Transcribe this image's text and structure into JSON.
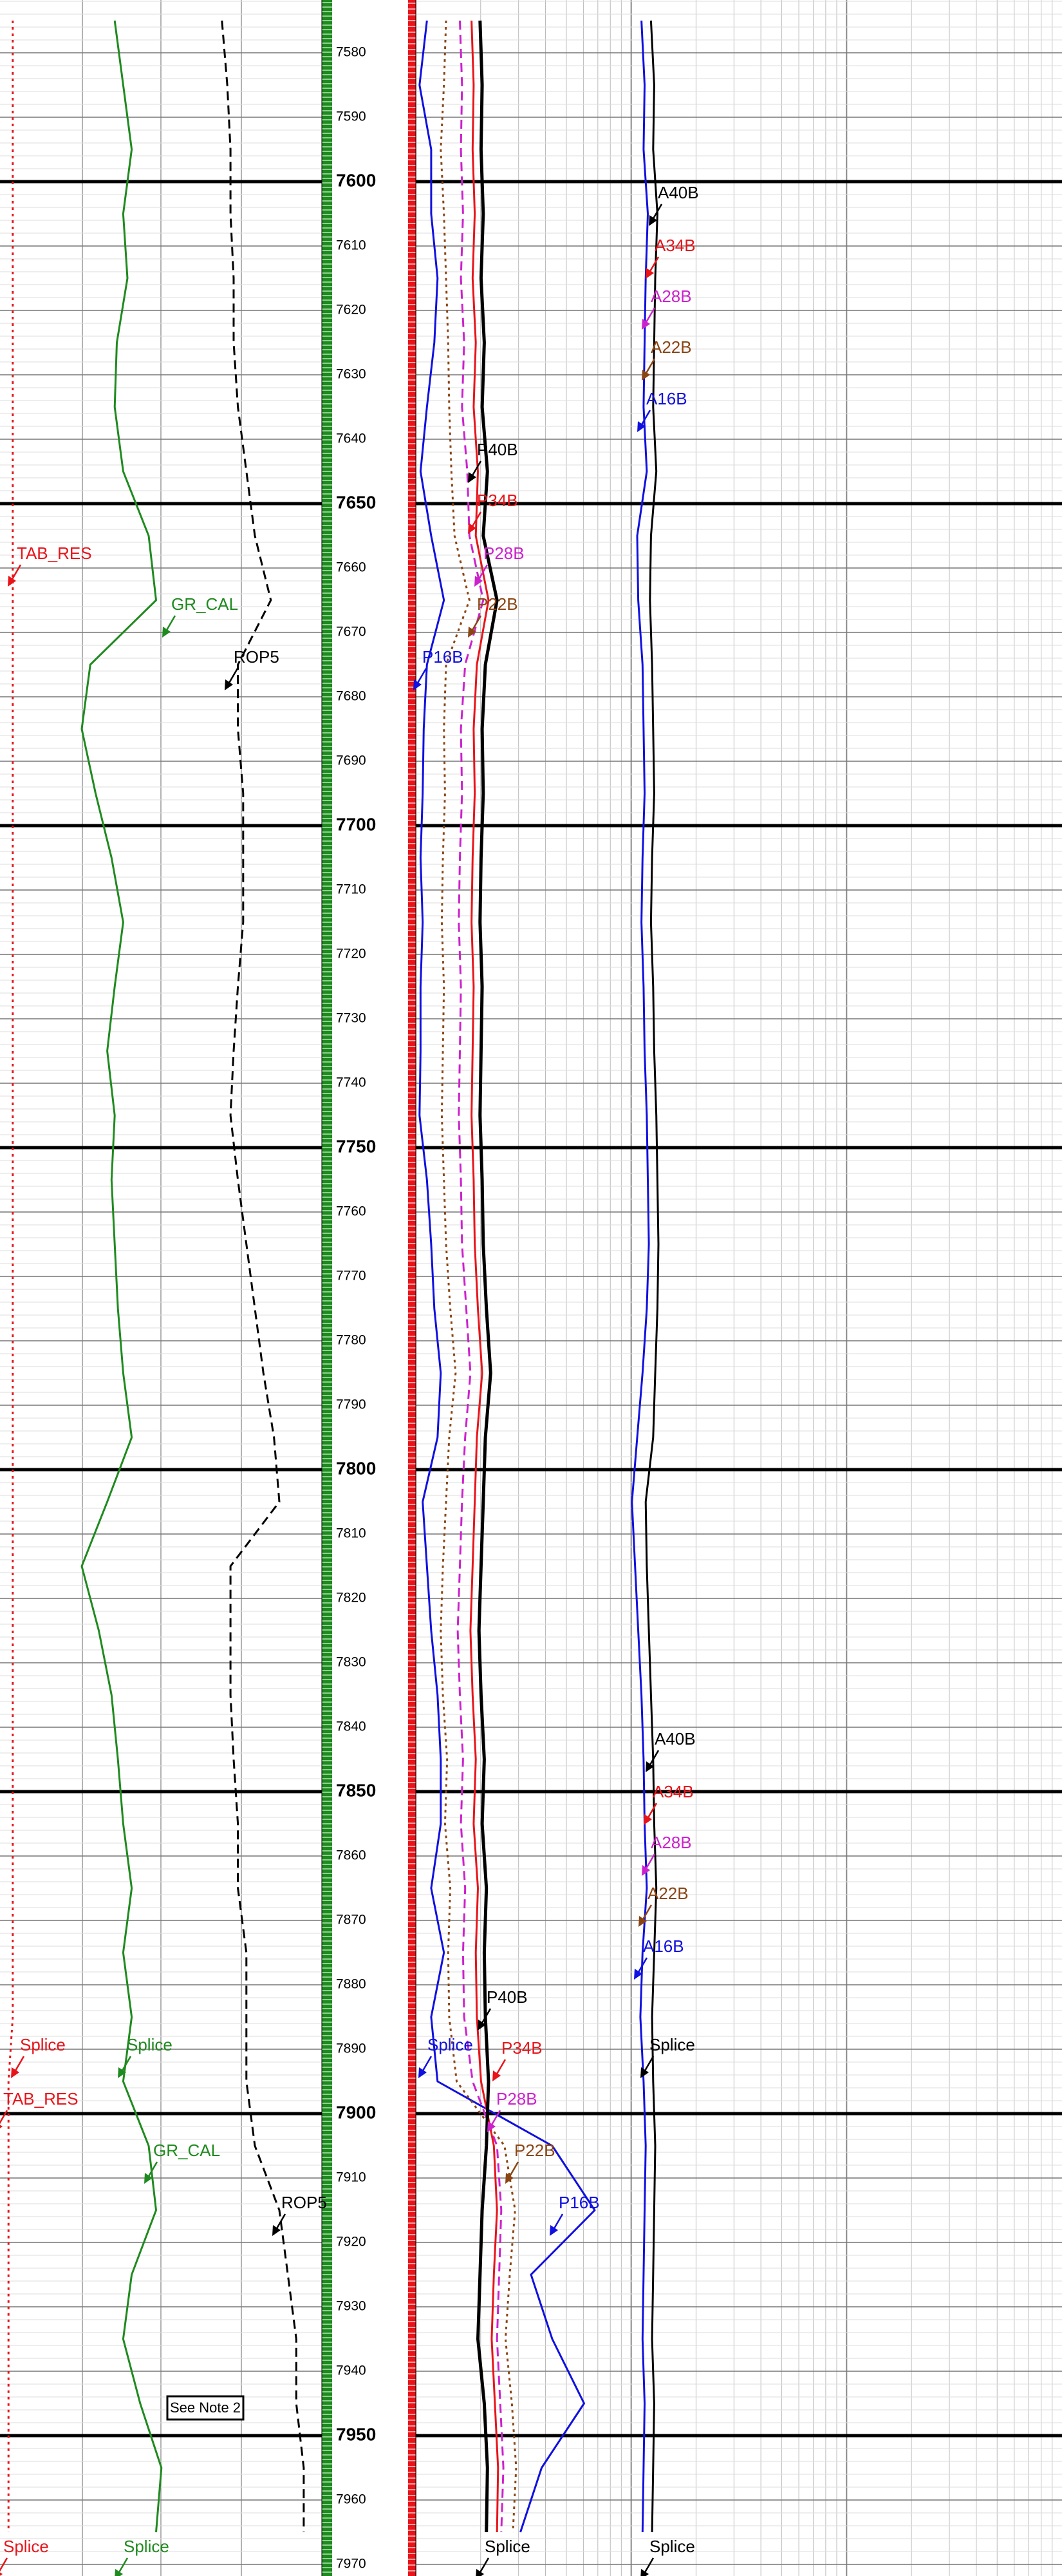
{
  "chart_data": {
    "type": "well-log",
    "ylim": [
      7571.8,
      7971.8
    ],
    "yticks": [
      7580,
      7590,
      7600,
      7610,
      7620,
      7630,
      7640,
      7650,
      7660,
      7670,
      7680,
      7690,
      7700,
      7710,
      7720,
      7730,
      7740,
      7750,
      7760,
      7770,
      7780,
      7790,
      7800,
      7810,
      7820,
      7830,
      7840,
      7850,
      7860,
      7870,
      7880,
      7890,
      7900,
      7910,
      7920,
      7930,
      7940,
      7950,
      7960,
      7970
    ],
    "xlim": [
      0,
      100
    ],
    "depths": [
      7575,
      7585,
      7595,
      7605,
      7615,
      7625,
      7635,
      7645,
      7655,
      7665,
      7675,
      7685,
      7695,
      7705,
      7715,
      7725,
      7735,
      7745,
      7755,
      7765,
      7775,
      7785,
      7795,
      7805,
      7815,
      7825,
      7835,
      7845,
      7855,
      7865,
      7875,
      7885,
      7895,
      7905,
      7915,
      7925,
      7935,
      7945,
      7955,
      7965
    ],
    "series": [
      {
        "color": "#1f8a1f",
        "style": "solid",
        "values": [
          10.8,
          11.6,
          12.4,
          11.6,
          12.0,
          11.0,
          10.8,
          11.6,
          14.0,
          14.7,
          8.5,
          7.7,
          9.0,
          10.5,
          11.6,
          10.8,
          10.1,
          10.8,
          10.5,
          10.8,
          11.1,
          11.6,
          12.4,
          10.1,
          7.7,
          9.3,
          10.5,
          11.1,
          11.6,
          12.4,
          11.6,
          12.4,
          11.6,
          14.0,
          14.7,
          12.4,
          11.6,
          13.2,
          15.2,
          14.7
        ]
      },
      {
        "color": "#000000",
        "style": "dashed",
        "values": [
          20.9,
          21.4,
          21.7,
          21.7,
          22.0,
          22.0,
          22.4,
          23.2,
          24.0,
          25.5,
          22.4,
          22.4,
          22.9,
          22.9,
          22.9,
          22.4,
          22.0,
          21.7,
          22.4,
          23.2,
          24.0,
          24.8,
          25.8,
          26.3,
          21.7,
          21.7,
          21.7,
          22.0,
          22.4,
          22.4,
          23.2,
          23.2,
          23.2,
          24.0,
          26.3,
          27.1,
          27.9,
          27.9,
          28.6,
          28.6
        ]
      },
      {
        "color": "#e8141a",
        "style": "dotted",
        "values": [
          1.2,
          1.2,
          1.2,
          1.2,
          1.2,
          1.2,
          1.2,
          1.2,
          1.2,
          1.2,
          1.2,
          1.2,
          1.2,
          1.2,
          1.2,
          1.2,
          1.2,
          1.2,
          1.2,
          1.2,
          1.2,
          1.2,
          1.2,
          1.2,
          1.2,
          1.2,
          1.2,
          1.2,
          1.2,
          1.2,
          1.2,
          1.2,
          0.8,
          0.8,
          0.8,
          0.8,
          0.8,
          0.8,
          0.8,
          0.8
        ]
      },
      {
        "color": "#1010e0",
        "style": "solid",
        "values": [
          40.2,
          39.5,
          40.6,
          40.6,
          41.2,
          40.9,
          40.2,
          39.6,
          40.6,
          41.8,
          40.2,
          39.9,
          39.8,
          39.6,
          39.8,
          39.6,
          39.6,
          39.5,
          40.2,
          40.6,
          40.9,
          41.5,
          41.2,
          39.8,
          40.2,
          40.6,
          41.2,
          41.5,
          41.5,
          40.6,
          41.8,
          40.6,
          41.2,
          52.0,
          56.0,
          50.0,
          52.0,
          55.0,
          51.0,
          49.0
        ]
      },
      {
        "color": "#8b4513",
        "style": "dotted",
        "values": [
          42.0,
          41.8,
          41.5,
          41.8,
          42.0,
          42.2,
          42.3,
          42.5,
          42.8,
          44.2,
          42.0,
          41.8,
          41.9,
          41.7,
          41.6,
          41.8,
          41.7,
          41.6,
          41.8,
          42.0,
          42.4,
          42.9,
          42.3,
          42.0,
          41.7,
          41.5,
          41.7,
          42.1,
          41.9,
          42.4,
          42.2,
          42.3,
          43.0,
          47.5,
          48.5,
          48.0,
          47.6,
          48.2,
          48.6,
          48.3
        ]
      },
      {
        "color": "#cc22cc",
        "style": "dashed",
        "values": [
          43.3,
          43.5,
          43.4,
          43.6,
          43.4,
          43.7,
          43.5,
          44.0,
          44.2,
          45.5,
          43.8,
          43.4,
          43.5,
          43.3,
          43.2,
          43.4,
          43.3,
          43.2,
          43.4,
          43.5,
          43.9,
          44.3,
          43.8,
          43.5,
          43.3,
          43.1,
          43.3,
          43.6,
          43.4,
          43.8,
          43.6,
          43.7,
          44.5,
          46.8,
          47.2,
          47.0,
          46.8,
          47.1,
          47.4,
          47.2
        ]
      },
      {
        "color": "#e8141a",
        "style": "solid",
        "values": [
          44.4,
          44.6,
          44.5,
          44.7,
          44.5,
          44.8,
          44.6,
          45.0,
          44.8,
          46.0,
          44.9,
          44.6,
          44.7,
          44.5,
          44.4,
          44.6,
          44.5,
          44.4,
          44.6,
          44.7,
          45.0,
          45.4,
          44.9,
          44.7,
          44.5,
          44.3,
          44.5,
          44.8,
          44.6,
          45.0,
          44.8,
          44.9,
          45.3,
          46.5,
          46.8,
          46.5,
          46.3,
          46.6,
          46.9,
          46.8
        ]
      },
      {
        "color": "#000000",
        "style": "bold",
        "values": [
          45.2,
          45.4,
          45.3,
          45.5,
          45.3,
          45.6,
          45.4,
          45.9,
          45.5,
          46.8,
          45.7,
          45.4,
          45.5,
          45.3,
          45.2,
          45.4,
          45.3,
          45.2,
          45.4,
          45.5,
          45.8,
          46.2,
          45.7,
          45.5,
          45.3,
          45.1,
          45.3,
          45.6,
          45.4,
          45.8,
          45.6,
          45.7,
          46.0,
          45.8,
          45.4,
          45.2,
          45.0,
          45.6,
          45.9,
          45.8
        ]
      },
      {
        "color": "#1010e0",
        "style": "solid",
        "values": [
          60.4,
          60.7,
          60.6,
          61.0,
          60.8,
          60.7,
          60.6,
          60.9,
          60.0,
          60.1,
          60.5,
          60.6,
          60.7,
          60.5,
          60.4,
          60.6,
          60.7,
          60.9,
          61.0,
          61.1,
          60.9,
          60.5,
          60.0,
          59.5,
          59.8,
          60.1,
          60.4,
          60.6,
          60.7,
          60.9,
          60.5,
          60.3,
          60.6,
          60.8,
          60.7,
          60.6,
          60.5,
          60.7,
          60.6,
          60.5
        ]
      },
      {
        "color": "#000000",
        "style": "solid",
        "values": [
          61.3,
          61.6,
          61.5,
          61.9,
          61.7,
          61.6,
          61.5,
          61.8,
          61.3,
          61.2,
          61.4,
          61.5,
          61.6,
          61.4,
          61.3,
          61.5,
          61.6,
          61.8,
          61.9,
          62.0,
          61.9,
          61.7,
          61.5,
          60.8,
          60.9,
          61.1,
          61.3,
          61.5,
          61.6,
          61.8,
          61.6,
          61.4,
          61.5,
          61.7,
          61.6,
          61.5,
          61.4,
          61.6,
          61.5,
          61.4
        ]
      }
    ],
    "annotations": [
      {
        "text": "A40B",
        "color": "#000000"
      },
      {
        "text": "A34B",
        "color": "#e8141a"
      },
      {
        "text": "A28B",
        "color": "#cc22cc"
      },
      {
        "text": "A22B",
        "color": "#8b4513"
      },
      {
        "text": "A16B",
        "color": "#1010e0"
      },
      {
        "text": "P40B",
        "color": "#000000"
      },
      {
        "text": "P34B",
        "color": "#e8141a"
      },
      {
        "text": "P28B",
        "color": "#cc22cc"
      },
      {
        "text": "P22B",
        "color": "#8b4513"
      },
      {
        "text": "P16B",
        "color": "#1010e0"
      },
      {
        "text": "TAB_RES",
        "color": "#e8141a"
      },
      {
        "text": "GR_CAL",
        "color": "#1f8a1f"
      },
      {
        "text": "ROP5",
        "color": "#000000"
      },
      {
        "text": "A40B",
        "color": "#000000"
      },
      {
        "text": "A34B",
        "color": "#e8141a"
      },
      {
        "text": "A28B",
        "color": "#cc22cc"
      },
      {
        "text": "A22B",
        "color": "#8b4513"
      },
      {
        "text": "A16B",
        "color": "#1010e0"
      },
      {
        "text": "P40B",
        "color": "#000000"
      },
      {
        "text": "P34B",
        "color": "#e8141a"
      },
      {
        "text": "Splice",
        "color": "#e8141a"
      },
      {
        "text": "Splice",
        "color": "#1f8a1f"
      },
      {
        "text": "Splice",
        "color": "#1010e0"
      },
      {
        "text": "Splice",
        "color": "#000000"
      },
      {
        "text": "TAB_RES",
        "color": "#e8141a"
      },
      {
        "text": "GR_CAL",
        "color": "#1f8a1f"
      },
      {
        "text": "ROP5",
        "color": "#000000"
      },
      {
        "text": "P28B",
        "color": "#cc22cc"
      },
      {
        "text": "P22B",
        "color": "#8b4513"
      },
      {
        "text": "P16B",
        "color": "#1010e0"
      },
      {
        "text": "Splice",
        "color": "#e8141a"
      },
      {
        "text": "Splice",
        "color": "#1f8a1f"
      },
      {
        "text": "Splice",
        "color": "#000000"
      },
      {
        "text": "Splice",
        "color": "#000000"
      }
    ],
    "note": "See Note 2"
  }
}
